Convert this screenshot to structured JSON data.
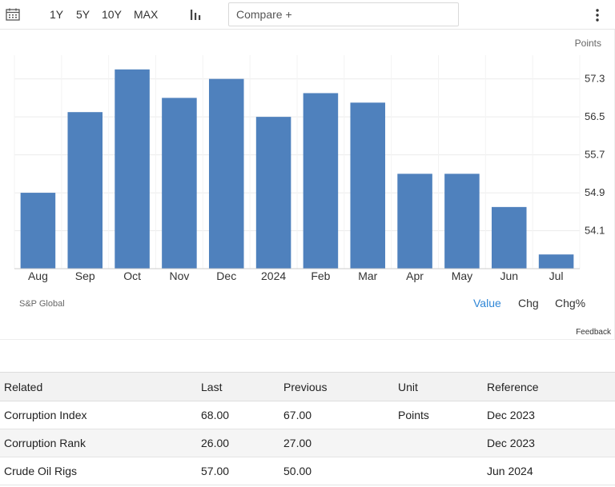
{
  "toolbar": {
    "ranges": [
      "1Y",
      "5Y",
      "10Y",
      "MAX"
    ],
    "compare_placeholder": "Compare +",
    "icons": {
      "calendar": "calendar-icon",
      "chart_type": "bar-chart-icon",
      "more": "more-vertical-icon"
    }
  },
  "chart": {
    "unit": "Points",
    "source": "S&P Global",
    "value_tabs": [
      "Value",
      "Chg",
      "Chg%"
    ],
    "active_tab": "Value",
    "feedback": "Feedback"
  },
  "chart_data": {
    "type": "bar",
    "categories": [
      "Aug",
      "Sep",
      "Oct",
      "Nov",
      "Dec",
      "2024",
      "Feb",
      "Mar",
      "Apr",
      "May",
      "Jun",
      "Jul"
    ],
    "values": [
      54.9,
      56.6,
      57.5,
      56.9,
      57.3,
      56.5,
      57.0,
      56.8,
      55.3,
      55.3,
      54.6,
      53.6
    ],
    "yticks": [
      54.1,
      54.9,
      55.7,
      56.5,
      57.3
    ],
    "ylim": [
      53.3,
      57.8
    ],
    "bar_color": "#4f81bd",
    "grid": true,
    "xlabel": "",
    "ylabel": ""
  },
  "related": {
    "headers": [
      "Related",
      "Last",
      "Previous",
      "Unit",
      "Reference"
    ],
    "rows": [
      [
        "Corruption Index",
        "68.00",
        "67.00",
        "Points",
        "Dec 2023"
      ],
      [
        "Corruption Rank",
        "26.00",
        "27.00",
        "",
        "Dec 2023"
      ],
      [
        "Crude Oil Rigs",
        "57.00",
        "50.00",
        "",
        "Jun 2024"
      ]
    ]
  }
}
